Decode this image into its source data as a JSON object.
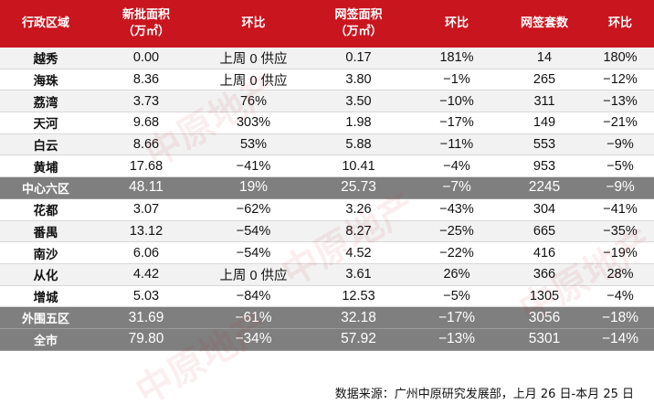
{
  "header": {
    "col_region": "行政区域",
    "col_new_area": "新批面积",
    "col_new_area_unit": "（万㎡）",
    "col_new_ratio": "环比",
    "col_sign_area": "网签面积",
    "col_sign_area_unit": "（万㎡）",
    "col_sign_ratio": "环比",
    "col_sign_units": "网签套数",
    "col_units_ratio": "环比"
  },
  "rows": [
    {
      "region": "越秀",
      "new_area": "0.00",
      "new_ratio": "上周 0 供应",
      "sign_area": "0.17",
      "sign_ratio": "181%",
      "units": "14",
      "units_ratio": "180%"
    },
    {
      "region": "海珠",
      "new_area": "8.36",
      "new_ratio": "上周 0 供应",
      "sign_area": "3.80",
      "sign_ratio": "−1%",
      "units": "265",
      "units_ratio": "−12%"
    },
    {
      "region": "荔湾",
      "new_area": "3.73",
      "new_ratio": "76%",
      "sign_area": "3.50",
      "sign_ratio": "−10%",
      "units": "311",
      "units_ratio": "−13%"
    },
    {
      "region": "天河",
      "new_area": "9.68",
      "new_ratio": "303%",
      "sign_area": "1.98",
      "sign_ratio": "−17%",
      "units": "149",
      "units_ratio": "−21%"
    },
    {
      "region": "白云",
      "new_area": "8.66",
      "new_ratio": "53%",
      "sign_area": "5.88",
      "sign_ratio": "−11%",
      "units": "553",
      "units_ratio": "−9%"
    },
    {
      "region": "黄埔",
      "new_area": "17.68",
      "new_ratio": "−41%",
      "sign_area": "10.41",
      "sign_ratio": "−4%",
      "units": "953",
      "units_ratio": "−5%"
    },
    {
      "region": "中心六区",
      "new_area": "48.11",
      "new_ratio": "19%",
      "sign_area": "25.73",
      "sign_ratio": "−7%",
      "units": "2245",
      "units_ratio": "−9%"
    },
    {
      "region": "花都",
      "new_area": "3.07",
      "new_ratio": "−62%",
      "sign_area": "3.26",
      "sign_ratio": "−43%",
      "units": "304",
      "units_ratio": "−41%"
    },
    {
      "region": "番禺",
      "new_area": "13.12",
      "new_ratio": "−54%",
      "sign_area": "8.27",
      "sign_ratio": "−25%",
      "units": "665",
      "units_ratio": "−35%"
    },
    {
      "region": "南沙",
      "new_area": "6.06",
      "new_ratio": "−54%",
      "sign_area": "4.52",
      "sign_ratio": "−22%",
      "units": "416",
      "units_ratio": "−19%"
    },
    {
      "region": "从化",
      "new_area": "4.42",
      "new_ratio": "上周 0 供应",
      "sign_area": "3.61",
      "sign_ratio": "26%",
      "units": "366",
      "units_ratio": "28%"
    },
    {
      "region": "增城",
      "new_area": "5.03",
      "new_ratio": "−84%",
      "sign_area": "12.53",
      "sign_ratio": "−5%",
      "units": "1305",
      "units_ratio": "−4%"
    },
    {
      "region": "外围五区",
      "new_area": "31.69",
      "new_ratio": "−61%",
      "sign_area": "32.18",
      "sign_ratio": "−17%",
      "units": "3056",
      "units_ratio": "−18%"
    },
    {
      "region": "全市",
      "new_area": "79.80",
      "new_ratio": "−34%",
      "sign_area": "57.92",
      "sign_ratio": "−13%",
      "units": "5301",
      "units_ratio": "−14%"
    }
  ],
  "source_note": "数据来源：广州中原研究发展部，上月 26 日-本月 25 日",
  "watermark": "中原地产",
  "colors": {
    "header_bg": "#c9151e",
    "summary_bg": "#7f7f7f",
    "alt_row_bg": "#f2f2f2"
  }
}
